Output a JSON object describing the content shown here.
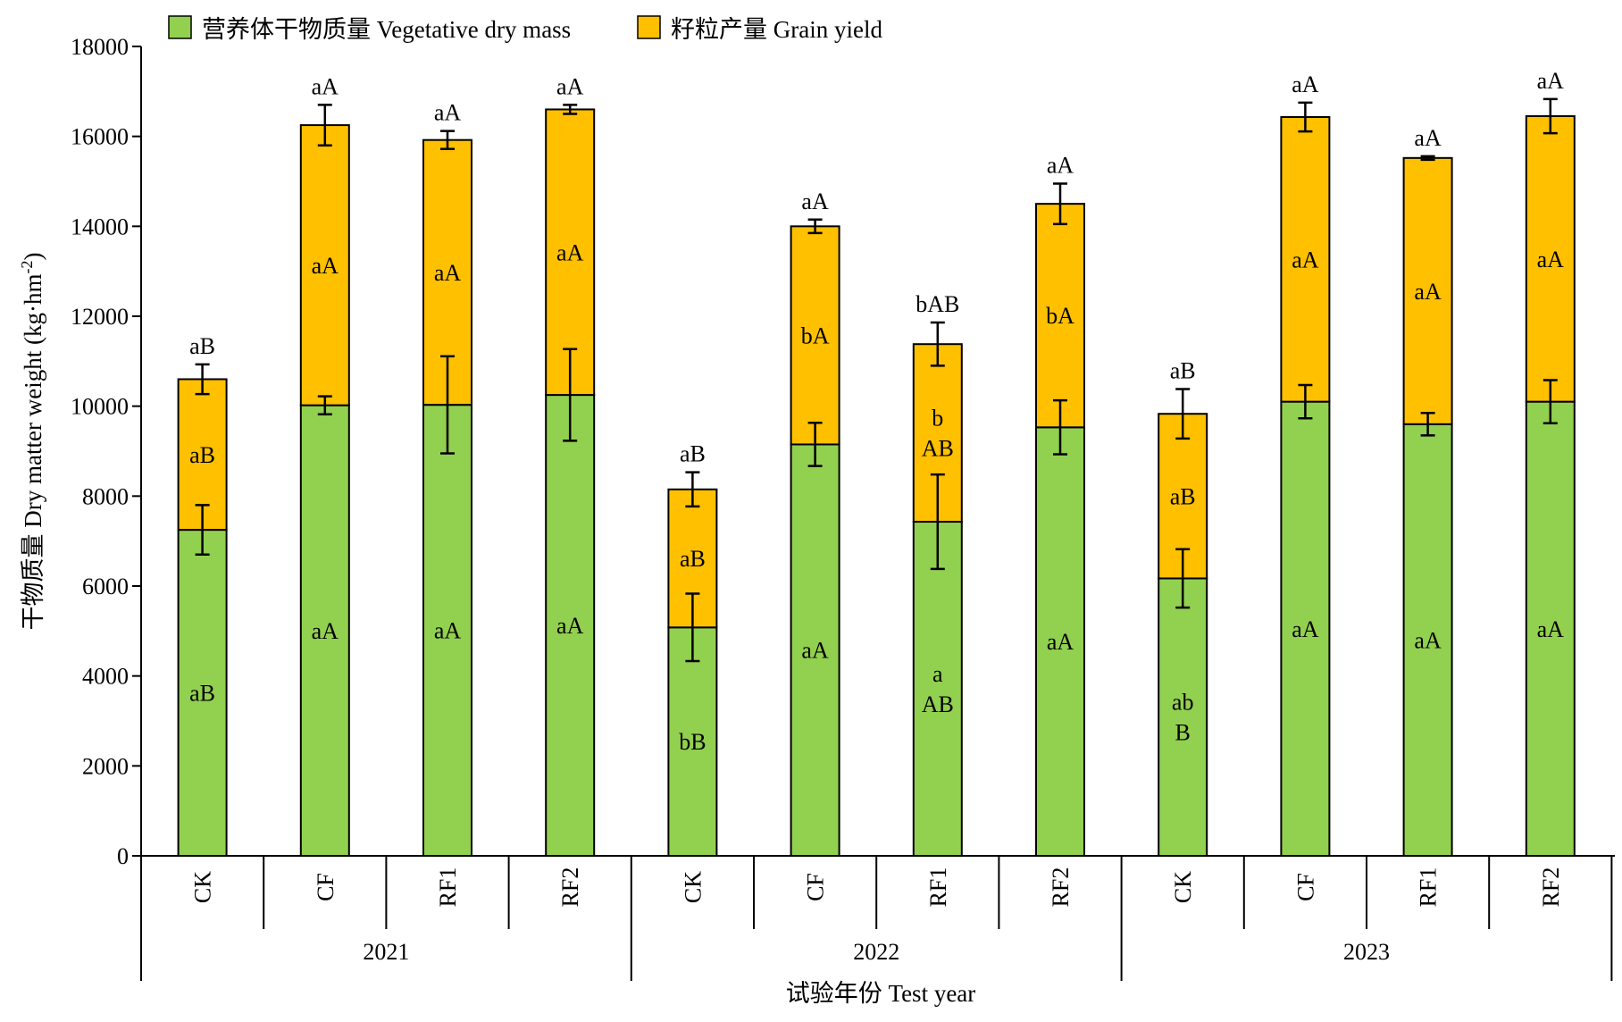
{
  "chart_data": {
    "type": "bar",
    "stacked": true,
    "ylabel": "干物质量 Dry matter weight (kg·hm-2)",
    "ylabel_main": "干物质量 Dry matter weight (kg·hm",
    "ylabel_sup": "-2",
    "ylabel_close": ")",
    "xlabel": "试验年份 Test year",
    "ylim": [
      0,
      18000
    ],
    "yticks": [
      0,
      2000,
      4000,
      6000,
      8000,
      10000,
      12000,
      14000,
      16000,
      18000
    ],
    "legend_position": "top-left",
    "legend": [
      {
        "name": "营养体干物质量 Vegetative dry mass",
        "color": "#92d050"
      },
      {
        "name": "籽粒产量 Grain yield",
        "color": "#ffc000"
      }
    ],
    "years": [
      "2021",
      "2022",
      "2023"
    ],
    "groups": [
      {
        "year": "2021",
        "category": "CK",
        "veg": 7250,
        "veg_err": 550,
        "total": 10600,
        "total_err": 330,
        "veg_sig": [
          "aB"
        ],
        "grain_sig": [
          "aB"
        ],
        "top_sig": "aB"
      },
      {
        "year": "2021",
        "category": "CF",
        "veg": 10020,
        "veg_err": 200,
        "total": 16250,
        "total_err": 450,
        "veg_sig": [
          "aA"
        ],
        "grain_sig": [
          "aA"
        ],
        "top_sig": "aA"
      },
      {
        "year": "2021",
        "category": "RF1",
        "veg": 10030,
        "veg_err": 1080,
        "total": 15920,
        "total_err": 200,
        "veg_sig": [
          "aA"
        ],
        "grain_sig": [
          "aA"
        ],
        "top_sig": "aA"
      },
      {
        "year": "2021",
        "category": "RF2",
        "veg": 10250,
        "veg_err": 1020,
        "total": 16600,
        "total_err": 100,
        "veg_sig": [
          "aA"
        ],
        "grain_sig": [
          "aA"
        ],
        "top_sig": "aA"
      },
      {
        "year": "2022",
        "category": "CK",
        "veg": 5080,
        "veg_err": 750,
        "total": 8150,
        "total_err": 380,
        "veg_sig": [
          "bB"
        ],
        "grain_sig": [
          "aB"
        ],
        "top_sig": "aB"
      },
      {
        "year": "2022",
        "category": "CF",
        "veg": 9150,
        "veg_err": 480,
        "total": 14000,
        "total_err": 150,
        "veg_sig": [
          "aA"
        ],
        "grain_sig": [
          "bA"
        ],
        "top_sig": "aA"
      },
      {
        "year": "2022",
        "category": "RF1",
        "veg": 7430,
        "veg_err": 1050,
        "total": 11380,
        "total_err": 480,
        "veg_sig": [
          "a",
          "AB"
        ],
        "grain_sig": [
          "b",
          "AB"
        ],
        "top_sig": "bAB"
      },
      {
        "year": "2022",
        "category": "RF2",
        "veg": 9530,
        "veg_err": 600,
        "total": 14500,
        "total_err": 450,
        "veg_sig": [
          "aA"
        ],
        "grain_sig": [
          "bA"
        ],
        "top_sig": "aA"
      },
      {
        "year": "2023",
        "category": "CK",
        "veg": 6170,
        "veg_err": 650,
        "total": 9830,
        "total_err": 550,
        "veg_sig": [
          "ab",
          "B"
        ],
        "grain_sig": [
          "aB"
        ],
        "top_sig": "aB"
      },
      {
        "year": "2023",
        "category": "CF",
        "veg": 10100,
        "veg_err": 370,
        "total": 16430,
        "total_err": 320,
        "veg_sig": [
          "aA"
        ],
        "grain_sig": [
          "aA"
        ],
        "top_sig": "aA"
      },
      {
        "year": "2023",
        "category": "RF1",
        "veg": 9600,
        "veg_err": 250,
        "total": 15520,
        "total_err": 40,
        "veg_sig": [
          "aA"
        ],
        "grain_sig": [
          "aA"
        ],
        "top_sig": "aA"
      },
      {
        "year": "2023",
        "category": "RF2",
        "veg": 10100,
        "veg_err": 480,
        "total": 16450,
        "total_err": 380,
        "veg_sig": [
          "aA"
        ],
        "grain_sig": [
          "aA"
        ],
        "top_sig": "aA"
      }
    ]
  }
}
